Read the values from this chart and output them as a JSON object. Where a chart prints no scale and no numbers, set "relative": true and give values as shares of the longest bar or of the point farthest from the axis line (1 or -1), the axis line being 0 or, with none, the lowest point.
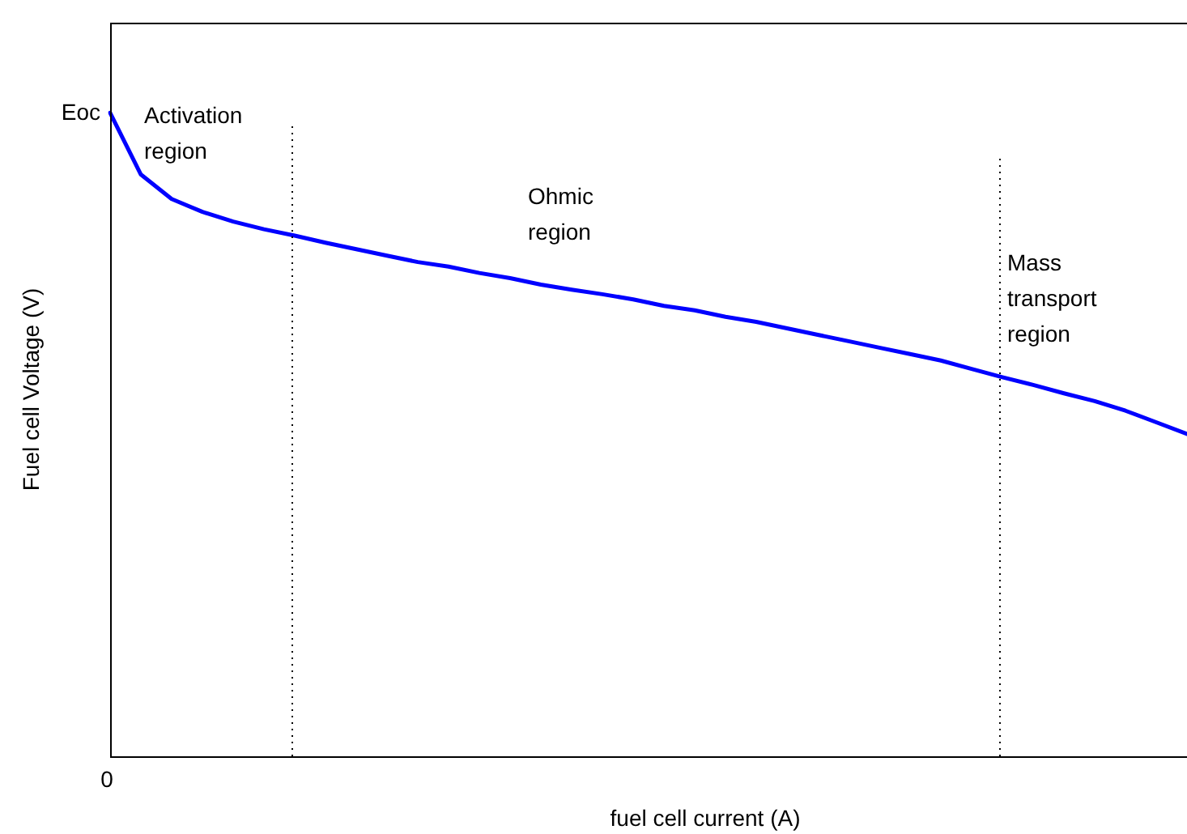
{
  "chart_data": {
    "type": "line",
    "relative": true,
    "xlabel": "fuel cell current (A)",
    "ylabel": "Fuel cell Voltage (V)",
    "categories": [
      null,
      null,
      null,
      null,
      null,
      null,
      null,
      null,
      null,
      null,
      null,
      null,
      null,
      null,
      null,
      null,
      null,
      null,
      null,
      null,
      null,
      null,
      null,
      null,
      null,
      null,
      null,
      null,
      null,
      null,
      null,
      null,
      null,
      null,
      null,
      null
    ],
    "series": [
      {
        "color": "#0000ff",
        "values": [
          1.0,
          0.904,
          0.866,
          0.846,
          0.831,
          0.819,
          0.809,
          0.798,
          0.788,
          0.778,
          0.768,
          0.761,
          0.751,
          0.743,
          0.733,
          0.725,
          0.718,
          0.71,
          0.7,
          0.693,
          0.683,
          0.675,
          0.665,
          0.655,
          0.645,
          0.635,
          0.625,
          0.615,
          0.602,
          0.589,
          0.577,
          0.564,
          0.552,
          0.537,
          0.519,
          0.501
        ]
      }
    ],
    "annotations": [
      "Eoc",
      "0",
      "Activation\nregion",
      "Ohmic\nregion",
      "Mass\ntransport\nregion"
    ],
    "marker": "none",
    "line_style": "solid"
  }
}
